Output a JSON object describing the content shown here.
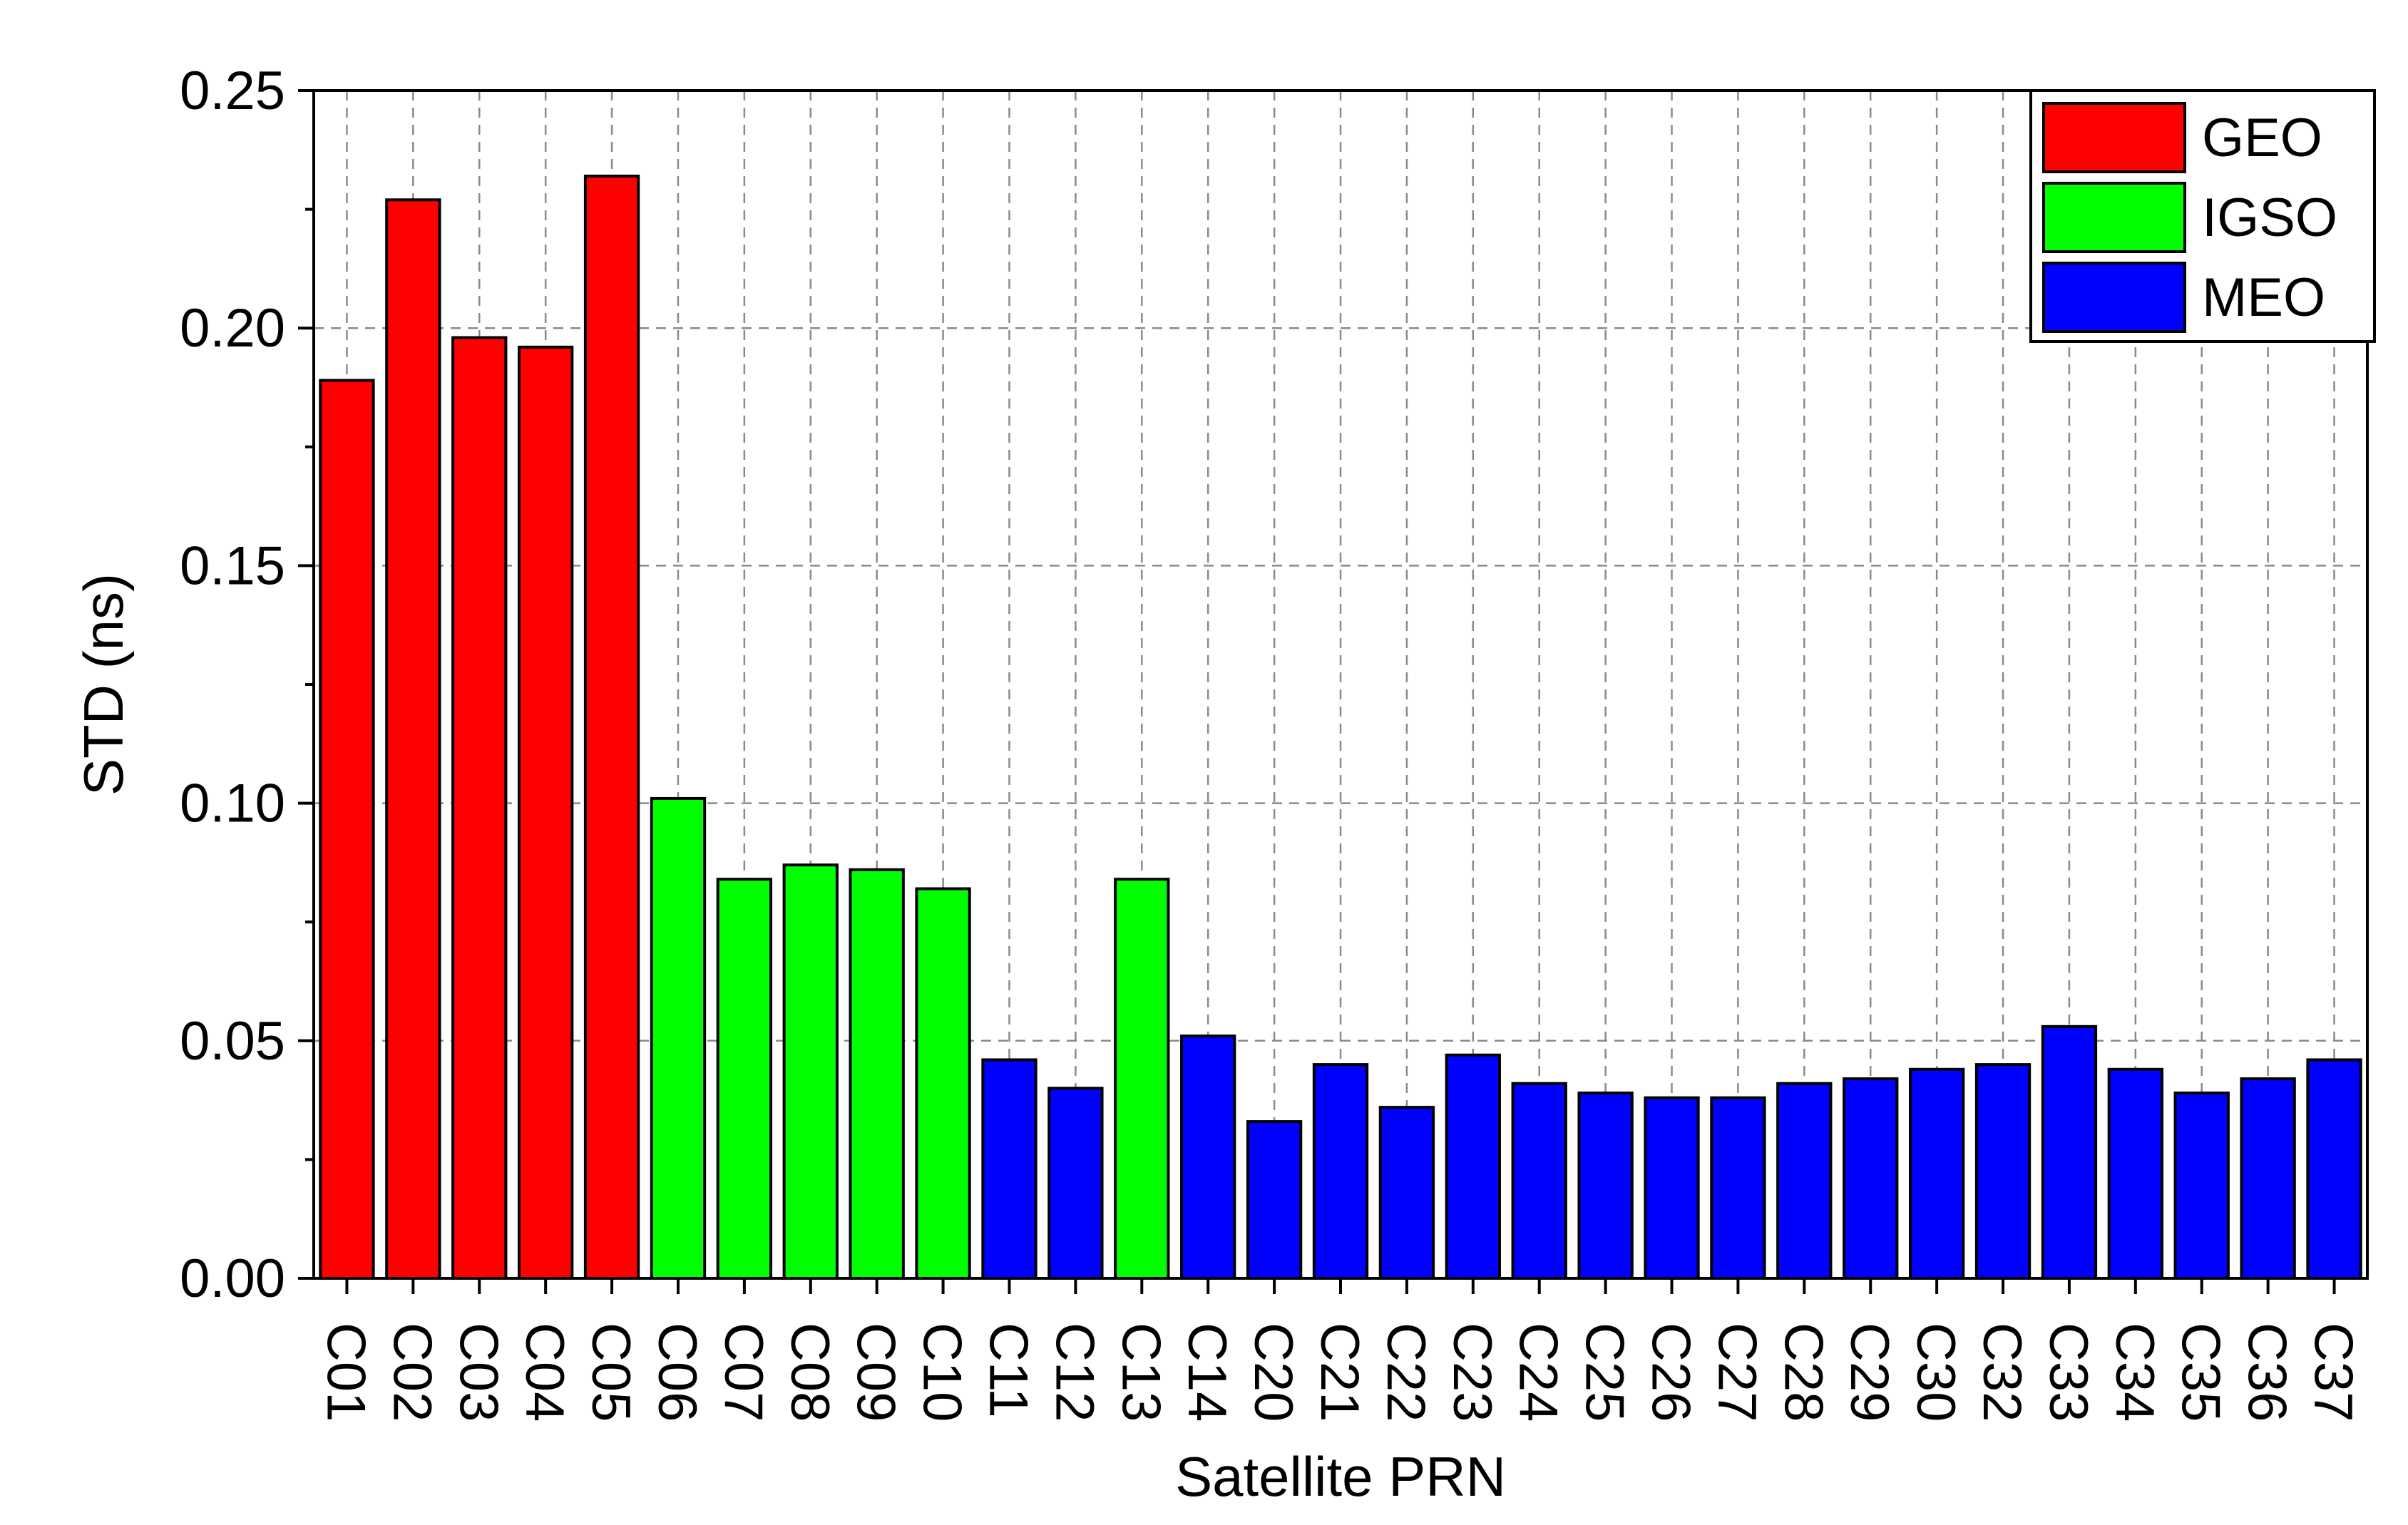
{
  "chart_data": {
    "type": "bar",
    "xlabel": "Satellite PRN",
    "ylabel": "STD (ns)",
    "ylim": [
      0,
      0.25
    ],
    "yticks": [
      "0.00",
      "0.05",
      "0.10",
      "0.15",
      "0.20",
      "0.25"
    ],
    "grid": true,
    "legend_position": "top-right",
    "categories": [
      "C01",
      "C02",
      "C03",
      "C04",
      "C05",
      "C06",
      "C07",
      "C08",
      "C09",
      "C10",
      "C11",
      "C12",
      "C13",
      "C14",
      "C20",
      "C21",
      "C22",
      "C23",
      "C24",
      "C25",
      "C26",
      "C27",
      "C28",
      "C29",
      "C30",
      "C32",
      "C33",
      "C34",
      "C35",
      "C36",
      "C37"
    ],
    "values": [
      0.189,
      0.227,
      0.198,
      0.196,
      0.232,
      0.101,
      0.084,
      0.087,
      0.086,
      0.082,
      0.046,
      0.04,
      0.084,
      0.051,
      0.033,
      0.045,
      0.036,
      0.047,
      0.041,
      0.039,
      0.038,
      0.038,
      0.041,
      0.042,
      0.044,
      0.045,
      0.053,
      0.044,
      0.039,
      0.042,
      0.046
    ],
    "groups": [
      "GEO",
      "GEO",
      "GEO",
      "GEO",
      "GEO",
      "IGSO",
      "IGSO",
      "IGSO",
      "IGSO",
      "IGSO",
      "MEO",
      "MEO",
      "IGSO",
      "MEO",
      "MEO",
      "MEO",
      "MEO",
      "MEO",
      "MEO",
      "MEO",
      "MEO",
      "MEO",
      "MEO",
      "MEO",
      "MEO",
      "MEO",
      "MEO",
      "MEO",
      "MEO",
      "MEO",
      "MEO"
    ],
    "legend": [
      {
        "name": "GEO",
        "color": "#ff0000"
      },
      {
        "name": "IGSO",
        "color": "#00ff00"
      },
      {
        "name": "MEO",
        "color": "#0000ff"
      }
    ]
  }
}
